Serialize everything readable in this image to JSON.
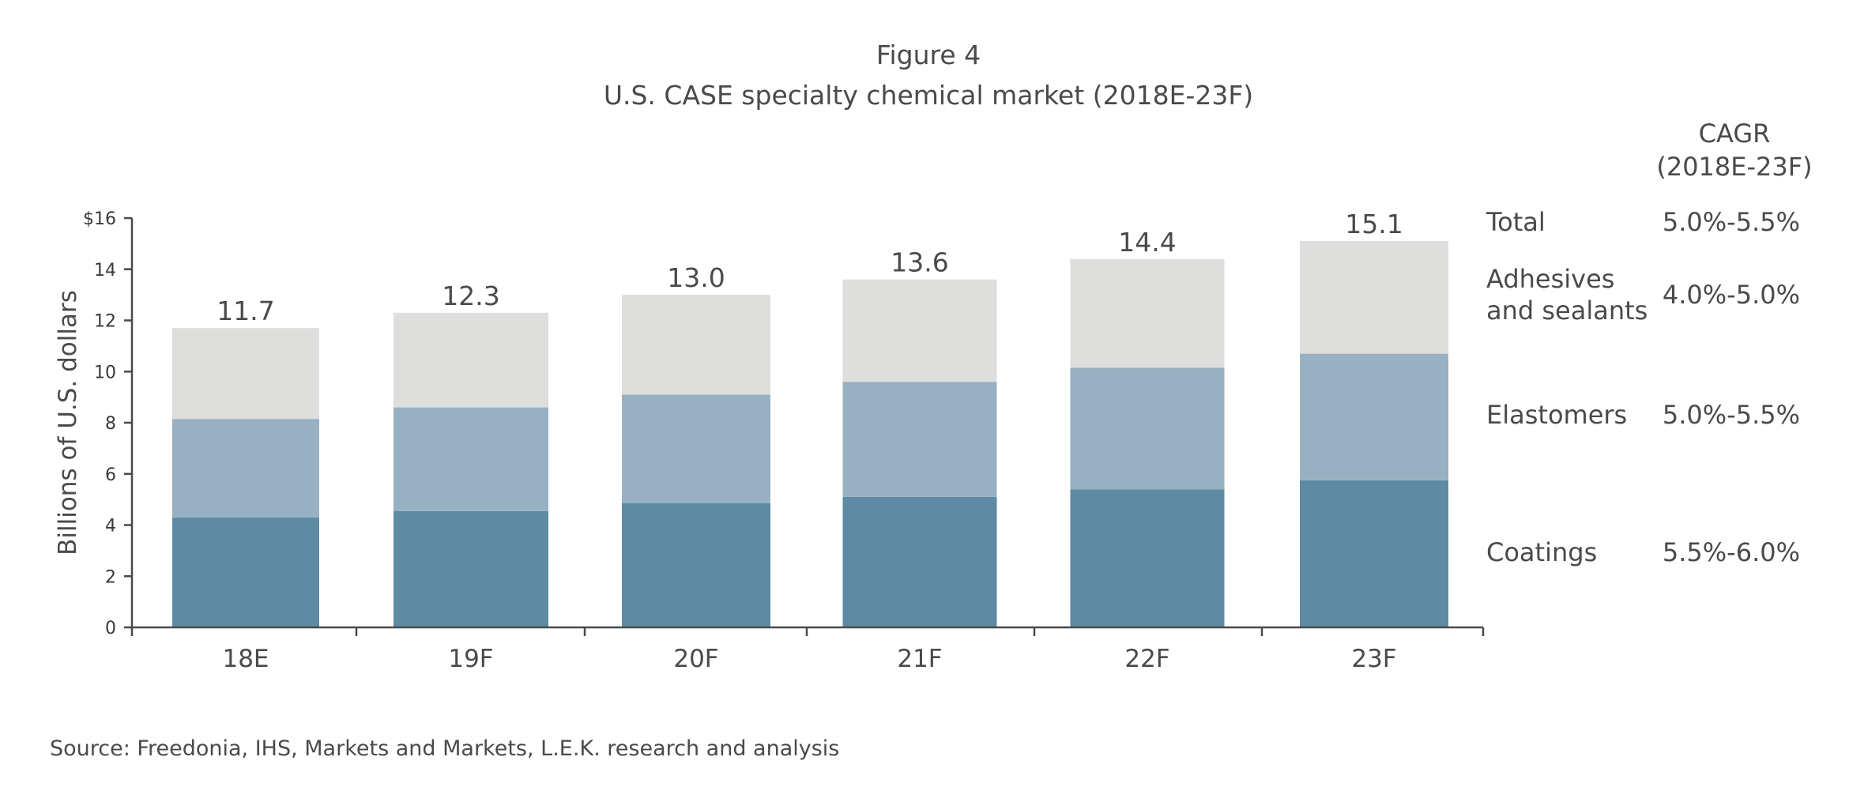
{
  "chart_data": {
    "type": "bar",
    "stacked": true,
    "title": "Figure 4",
    "subtitle": "U.S. CASE specialty chemical market (2018E-23F)",
    "ylabel": "Billions of U.S. dollars",
    "ylim": [
      0,
      16
    ],
    "y_ticks": [
      "0",
      "2",
      "4",
      "6",
      "8",
      "10",
      "12",
      "14",
      "$16"
    ],
    "y_tick_values": [
      0,
      2,
      4,
      6,
      8,
      10,
      12,
      14,
      16
    ],
    "categories": [
      "18E",
      "19F",
      "20F",
      "21F",
      "22F",
      "23F"
    ],
    "series": [
      {
        "name": "Coatings",
        "color": "#5e8aa4",
        "values": [
          4.3,
          4.55,
          4.85,
          5.1,
          5.4,
          5.75
        ]
      },
      {
        "name": "Elastomers",
        "color": "#97b1c2",
        "values": [
          3.85,
          4.05,
          4.25,
          4.5,
          4.75,
          4.95
        ]
      },
      {
        "name": "Adhesives and sealants",
        "color": "#dededd",
        "values": [
          3.55,
          3.7,
          3.9,
          4.0,
          4.25,
          4.4
        ]
      }
    ],
    "totals": [
      "11.7",
      "12.3",
      "13.0",
      "13.6",
      "14.4",
      "15.1"
    ],
    "cagr_header": [
      "CAGR",
      "(2018E-23F)"
    ],
    "legend": [
      {
        "lines": [
          "Total"
        ],
        "cagr": "5.0%-5.5%"
      },
      {
        "lines": [
          "Adhesives",
          "and sealants"
        ],
        "cagr": "4.0%-5.0%"
      },
      {
        "lines": [
          "Elastomers"
        ],
        "cagr": "5.0%-5.5%"
      },
      {
        "lines": [
          "Coatings"
        ],
        "cagr": "5.5%-6.0%"
      }
    ],
    "source": "Source: Freedonia, IHS, Markets and Markets, L.E.K. research and analysis",
    "grid": false
  }
}
